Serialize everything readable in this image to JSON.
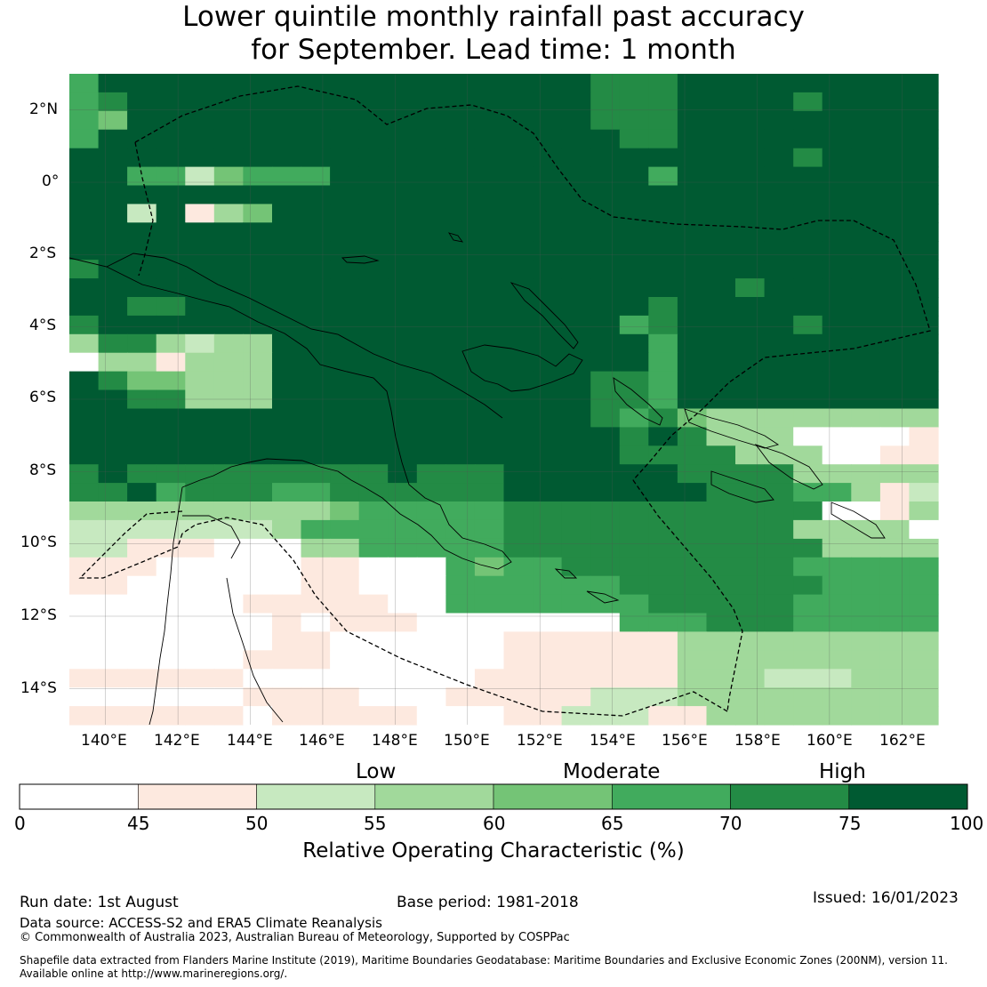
{
  "title": {
    "line1": "Lower quintile monthly rainfall past accuracy",
    "line2": "for September. Lead time: 1 month"
  },
  "map": {
    "lat_ticks": [
      "2°N",
      "0°",
      "2°S",
      "4°S",
      "6°S",
      "8°S",
      "10°S",
      "12°S",
      "14°S"
    ],
    "lon_ticks": [
      "140°E",
      "142°E",
      "144°E",
      "146°E",
      "148°E",
      "150°E",
      "152°E",
      "154°E",
      "156°E",
      "158°E",
      "160°E",
      "162°E"
    ],
    "extent": {
      "lon_min": 139.0,
      "lon_max": 163.0,
      "lat_min": -15.0,
      "lat_max": 3.0
    },
    "cell_size_deg": 0.83,
    "grid": true
  },
  "legend": {
    "categories": [
      "Low",
      "Moderate",
      "High"
    ],
    "bounds": [
      "0",
      "45",
      "50",
      "55",
      "60",
      "65",
      "70",
      "75",
      "100"
    ],
    "colors": [
      "#ffffff",
      "#fde9df",
      "#c7e9c0",
      "#a1d99b",
      "#74c476",
      "#41ab5d",
      "#238b45",
      "#005a32"
    ],
    "title": "Relative Operating Characteristic (%)"
  },
  "footer": {
    "run_date": "Run date: 1st August",
    "base_period": "Base period: 1981-2018",
    "issued": "Issued: 16/01/2023",
    "data_source": "Data source: ACCESS-S2 and ERA5 Climate Reanalysis",
    "copyright": "© Commonwealth of Australia 2023, Australian Bureau of Meteorology, Supported by COSPPac",
    "shapefile_1": "Shapefile data extracted from Flanders Marine Institute (2019), Maritime Boundaries Geodatabase: Maritime Boundaries and Exclusive Economic Zones (200NM), version 11.",
    "shapefile_2": "Available online at http://www.marineregions.org/."
  }
}
